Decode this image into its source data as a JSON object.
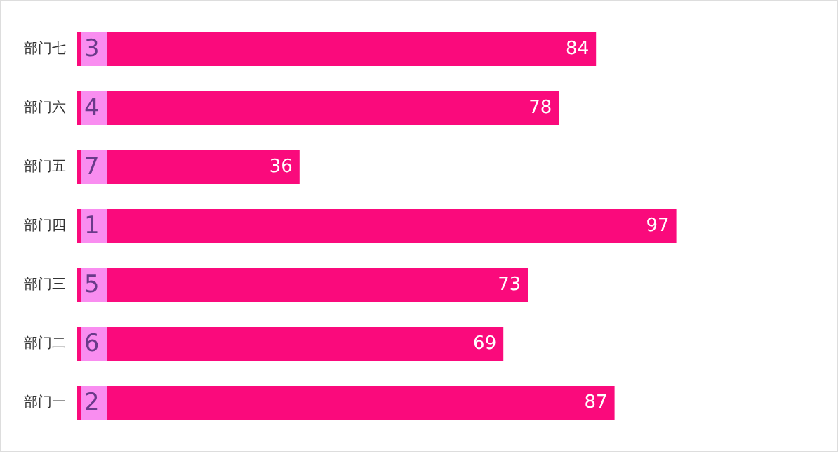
{
  "chart_data": {
    "type": "bar",
    "orientation": "horizontal",
    "categories": [
      "部门七",
      "部门六",
      "部门五",
      "部门四",
      "部门三",
      "部门二",
      "部门一"
    ],
    "tick_labels": "y",
    "series": [
      {
        "color": "#fa0a7c",
        "values": [
          84,
          78,
          36,
          97,
          73,
          69,
          87
        ],
        "value_labels": [
          "84",
          "78",
          "36",
          "97",
          "73",
          "69",
          "87"
        ]
      }
    ],
    "annotations": [
      {
        "text": "3",
        "y": "部门七"
      },
      {
        "text": "4",
        "y": "部门六"
      },
      {
        "text": "7",
        "y": "部门五"
      },
      {
        "text": "1",
        "y": "部门四"
      },
      {
        "text": "5",
        "y": "部门三"
      },
      {
        "text": "6",
        "y": "部门二"
      },
      {
        "text": "2",
        "y": "部门一"
      }
    ]
  }
}
